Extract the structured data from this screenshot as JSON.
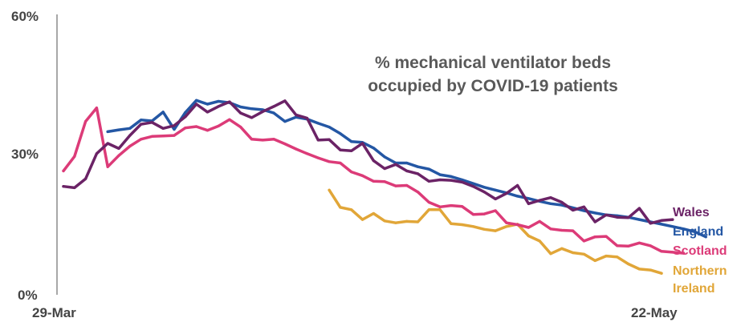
{
  "chart_data": {
    "type": "line",
    "title": "% mechanical ventilator beds occupied by COVID-19 patients",
    "title_lines": [
      "% mechanical ventilator beds",
      "occupied by COVID-19 patients"
    ],
    "x_range": [
      "29-Mar",
      "22-May"
    ],
    "x_tick_labels": [
      "29-Mar",
      "22-May"
    ],
    "ylim": [
      0,
      60
    ],
    "y_tick_labels": [
      "0%",
      "30%",
      "60%"
    ],
    "grid": false,
    "legend": "direct labels at right end of lines",
    "series": [
      {
        "name": "Wales",
        "color": "#6B2366",
        "start": "29-Mar",
        "values": [
          23.2,
          22.9,
          24.8,
          30.2,
          32.4,
          31.3,
          34.1,
          36.5,
          36.9,
          35.6,
          36.2,
          38.1,
          40.8,
          39.1,
          40.3,
          41.3,
          38.9,
          37.9,
          39.2,
          40.3,
          41.5,
          38.5,
          37.8,
          33.1,
          33.2,
          31.0,
          30.8,
          32.4,
          28.7,
          27.0,
          27.9,
          26.5,
          25.9,
          24.3,
          24.6,
          24.5,
          24.1,
          23.2,
          22.0,
          20.5,
          21.7,
          23.4,
          19.5,
          20.2,
          20.8,
          19.8,
          18.1,
          18.8,
          15.6,
          17.1,
          16.6,
          16.5,
          18.5,
          15.3,
          15.9,
          16.1
        ]
      },
      {
        "name": "England",
        "color": "#2457A4",
        "start": "2-Apr",
        "values": [
          34.9,
          35.3,
          35.6,
          37.4,
          37.2,
          39.1,
          35.4,
          39.0,
          41.6,
          40.8,
          41.4,
          41.1,
          40.2,
          39.8,
          39.6,
          38.9,
          37.1,
          38.0,
          37.6,
          36.7,
          35.9,
          34.5,
          32.8,
          32.6,
          31.4,
          29.5,
          28.2,
          28.2,
          27.4,
          26.9,
          25.7,
          25.3,
          24.6,
          23.8,
          23.0,
          22.4,
          21.8,
          21.1,
          20.6,
          20.0,
          19.5,
          19.2,
          18.6,
          18.0,
          17.5,
          17.1,
          16.9,
          16.6,
          16.1,
          15.6,
          15.1,
          14.6,
          14.1,
          13.5,
          12.4
        ]
      },
      {
        "name": "Scotland",
        "color": "#DC3B78",
        "start": "29-Mar",
        "values": [
          26.5,
          29.6,
          37.1,
          40.0,
          27.4,
          29.8,
          31.8,
          33.3,
          33.9,
          34.0,
          34.1,
          35.7,
          36.0,
          35.2,
          36.1,
          37.5,
          35.9,
          33.3,
          33.1,
          33.3,
          32.3,
          31.2,
          30.2,
          29.3,
          28.5,
          28.2,
          26.3,
          25.5,
          24.3,
          24.2,
          23.3,
          23.4,
          22.0,
          19.8,
          18.8,
          19.1,
          18.9,
          17.2,
          17.3,
          18.0,
          15.4,
          15.0,
          14.4,
          15.7,
          14.1,
          13.8,
          13.7,
          11.5,
          12.4,
          12.5,
          10.5,
          10.4,
          11.1,
          10.5,
          9.3,
          9.1,
          8.9
        ]
      },
      {
        "name": "Northern Ireland",
        "label_lines": [
          "Northern",
          "Ireland"
        ],
        "color": "#E1A638",
        "start": "22-Apr",
        "values": [
          22.4,
          18.7,
          18.2,
          16.1,
          17.4,
          15.8,
          15.4,
          15.7,
          15.6,
          18.2,
          18.2,
          15.2,
          15.0,
          14.6,
          14.0,
          13.7,
          14.6,
          15.1,
          12.6,
          11.5,
          8.8,
          9.9,
          9.0,
          8.7,
          7.3,
          8.3,
          8.1,
          6.6,
          5.5,
          5.3,
          4.6
        ]
      }
    ]
  }
}
